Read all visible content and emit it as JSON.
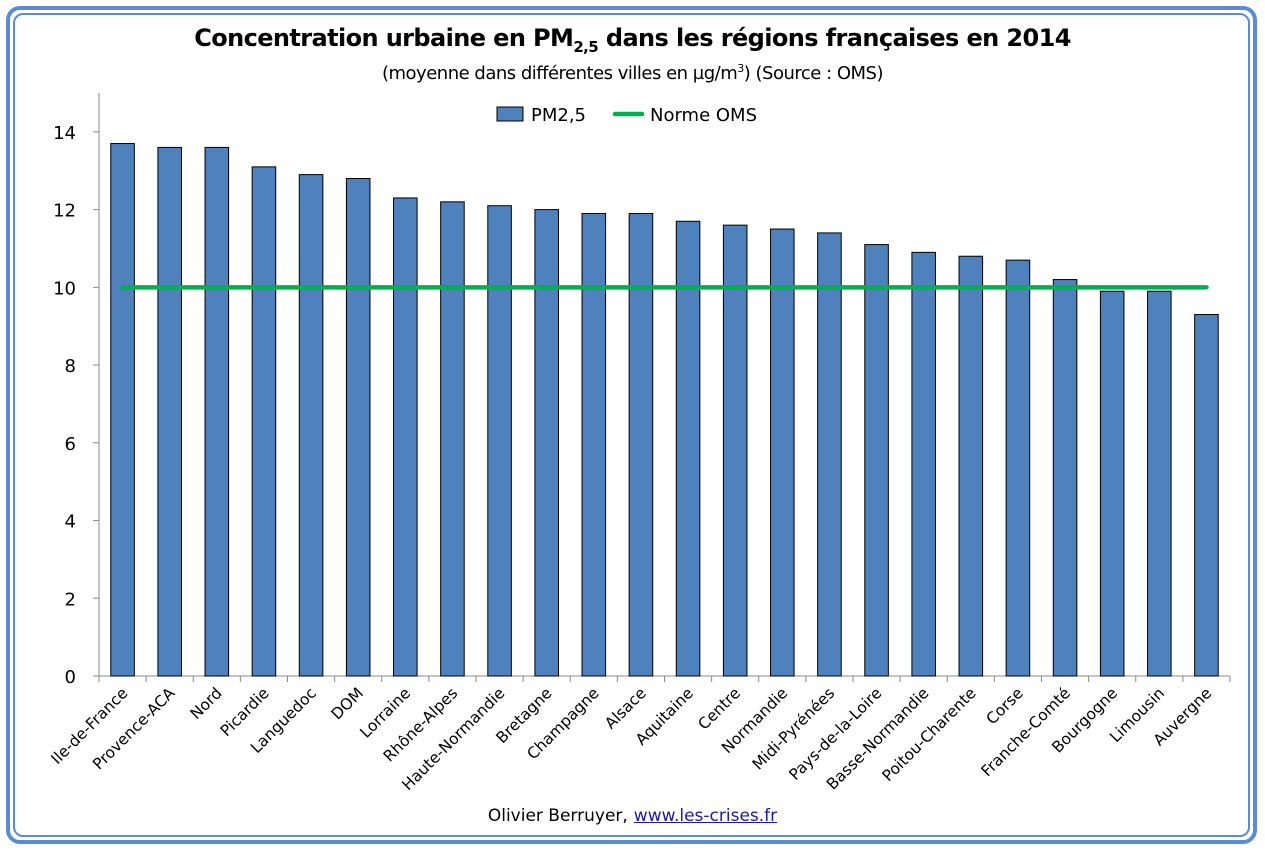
{
  "chart_data": {
    "type": "bar",
    "title_main": "Concentration urbaine en PM",
    "title_sub_index": "2,5",
    "title_rest": " dans les régions françaises en 2014",
    "subtitle_pre": "(moyenne dans différentes villes en µg/m",
    "subtitle_sup": "3",
    "subtitle_post": ")  (Source : OMS)",
    "xlabel": "",
    "ylabel": "",
    "ylim": [
      0,
      15
    ],
    "yticks": [
      0,
      2,
      4,
      6,
      8,
      10,
      12,
      14
    ],
    "grid": false,
    "legend_position": "top-center",
    "categories": [
      "Ile-de-France",
      "Provence-ACA",
      "Nord",
      "Picardie",
      "Languedoc",
      "DOM",
      "Lorraine",
      "Rhône-Alpes",
      "Haute-Normandie",
      "Bretagne",
      "Champagne",
      "Alsace",
      "Aquitaine",
      "Centre",
      "Normandie",
      "Midi-Pyrénées",
      "Pays-de-la-Loire",
      "Basse-Normandie",
      "Poitou-Charente",
      "Corse",
      "Franche-Comté",
      "Bourgogne",
      "Limousin",
      "Auvergne"
    ],
    "series": [
      {
        "name": "PM2,5",
        "kind": "bar",
        "color": "#4f81bd",
        "values": [
          13.7,
          13.6,
          13.6,
          13.1,
          12.9,
          12.8,
          12.3,
          12.2,
          12.1,
          12.0,
          11.9,
          11.9,
          11.7,
          11.6,
          11.5,
          11.4,
          11.1,
          10.9,
          10.8,
          10.7,
          10.2,
          9.9,
          9.9,
          9.3
        ]
      },
      {
        "name": "Norme OMS",
        "kind": "line",
        "color": "#00b050",
        "values": [
          10,
          10,
          10,
          10,
          10,
          10,
          10,
          10,
          10,
          10,
          10,
          10,
          10,
          10,
          10,
          10,
          10,
          10,
          10,
          10,
          10,
          10,
          10,
          10
        ]
      }
    ]
  },
  "footer": {
    "author": "Olivier Berruyer,",
    "link_text": "www.les-crises.fr"
  }
}
